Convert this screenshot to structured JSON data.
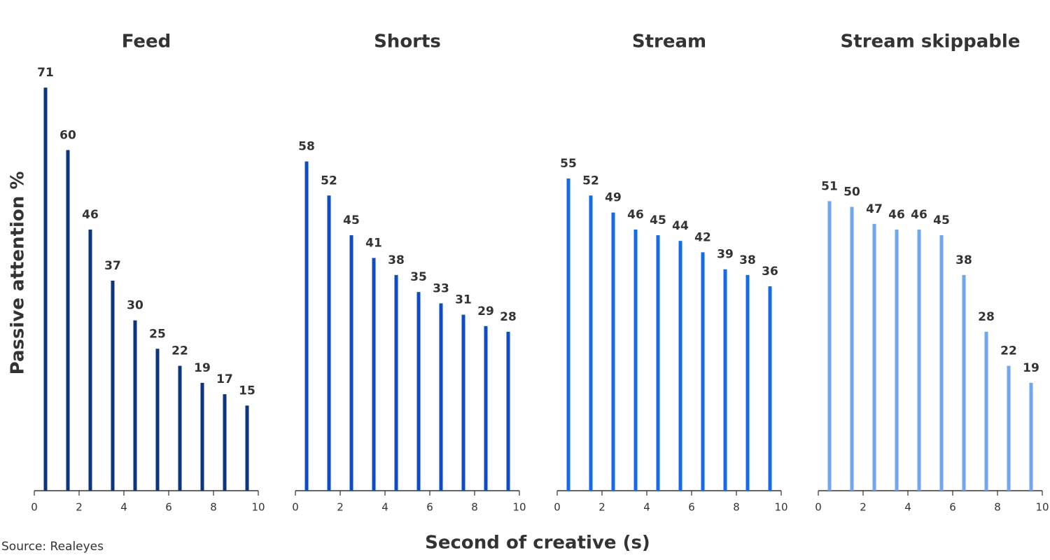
{
  "chart_data": [
    {
      "type": "bar",
      "title": "Feed",
      "x": [
        0.5,
        1.5,
        2.5,
        3.5,
        4.5,
        5.5,
        6.5,
        7.5,
        8.5,
        9.5
      ],
      "values": [
        71,
        60,
        46,
        37,
        30,
        25,
        22,
        19,
        17,
        15
      ],
      "color": "#0b3583",
      "xlim": [
        0,
        10
      ],
      "xticks": [
        0,
        2,
        4,
        6,
        8,
        10
      ]
    },
    {
      "type": "bar",
      "title": "Shorts",
      "x": [
        0.5,
        1.5,
        2.5,
        3.5,
        4.5,
        5.5,
        6.5,
        7.5,
        8.5,
        9.5
      ],
      "values": [
        58,
        52,
        45,
        41,
        38,
        35,
        33,
        31,
        29,
        28
      ],
      "color": "#0d4cc4",
      "xlim": [
        0,
        10
      ],
      "xticks": [
        0,
        2,
        4,
        6,
        8,
        10
      ]
    },
    {
      "type": "bar",
      "title": "Stream",
      "x": [
        0.5,
        1.5,
        2.5,
        3.5,
        4.5,
        5.5,
        6.5,
        7.5,
        8.5,
        9.5
      ],
      "values": [
        55,
        52,
        49,
        46,
        45,
        44,
        42,
        39,
        38,
        36
      ],
      "color": "#166af0",
      "xlim": [
        0,
        10
      ],
      "xticks": [
        0,
        2,
        4,
        6,
        8,
        10
      ]
    },
    {
      "type": "bar",
      "title": "Stream skippable",
      "x": [
        0.5,
        1.5,
        2.5,
        3.5,
        4.5,
        5.5,
        6.5,
        7.5,
        8.5,
        9.5
      ],
      "values": [
        51,
        50,
        47,
        46,
        46,
        45,
        38,
        28,
        22,
        19
      ],
      "color": "#6ea6f4",
      "xlim": [
        0,
        10
      ],
      "xticks": [
        0,
        2,
        4,
        6,
        8,
        10
      ]
    }
  ],
  "y_label": "Passive attention %",
  "x_label": "Second of creative (s)",
  "source": "Source: Realeyes"
}
